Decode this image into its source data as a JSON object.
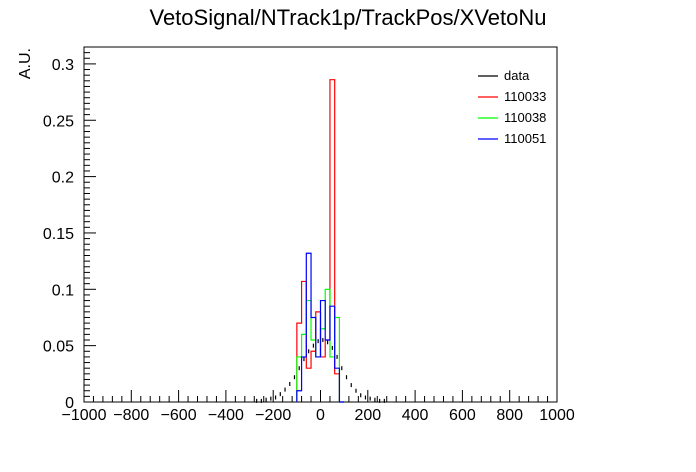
{
  "chart_data": {
    "type": "histogram",
    "title": "VetoSignal/NTrack1p/TrackPos/XVetoNu",
    "xlabel": "",
    "ylabel": "A.U.",
    "xlim": [
      -1000,
      1000
    ],
    "ylim": [
      0,
      0.315
    ],
    "x_ticks": [
      -1000,
      -800,
      -600,
      -400,
      -200,
      0,
      200,
      400,
      600,
      800,
      1000
    ],
    "x_tick_labels": [
      "−1000",
      "−800",
      "−600",
      "−400",
      "−200",
      "0",
      "200",
      "400",
      "600",
      "800",
      "1000"
    ],
    "y_ticks": [
      0,
      0.05,
      0.1,
      0.15,
      0.2,
      0.25,
      0.3
    ],
    "y_tick_labels": [
      "0",
      "0.05",
      "0.1",
      "0.15",
      "0.2",
      "0.25",
      "0.3"
    ],
    "bin_edges_x": [
      -100,
      -80,
      -60,
      -40,
      -20,
      0,
      20,
      40,
      60,
      80,
      100
    ],
    "legend_position": "top-right",
    "series": [
      {
        "name": "data",
        "color": "#000000",
        "style": "points",
        "x": [
          -270,
          -250,
          -230,
          -210,
          -190,
          -170,
          -150,
          -130,
          -110,
          -90,
          -70,
          -50,
          -30,
          -10,
          10,
          30,
          50,
          70,
          90,
          110,
          130,
          150,
          170,
          190,
          210,
          230,
          250,
          270
        ],
        "values": [
          0.001,
          0.001,
          0.002,
          0.003,
          0.004,
          0.007,
          0.011,
          0.016,
          0.022,
          0.03,
          0.038,
          0.045,
          0.05,
          0.054,
          0.055,
          0.053,
          0.048,
          0.04,
          0.03,
          0.022,
          0.015,
          0.01,
          0.006,
          0.004,
          0.003,
          0.002,
          0.001,
          0.001
        ]
      },
      {
        "name": "110033",
        "color": "#ff0000",
        "style": "step",
        "values": [
          0.07,
          0.107,
          0.03,
          0.045,
          0.08,
          0.04,
          0.055,
          0.286,
          0.025,
          0.0
        ]
      },
      {
        "name": "110038",
        "color": "#00ff00",
        "style": "step",
        "values": [
          0.04,
          0.06,
          0.09,
          0.055,
          0.04,
          0.065,
          0.1,
          0.04,
          0.075,
          0.0
        ]
      },
      {
        "name": "110051",
        "color": "#0000ff",
        "style": "step",
        "values": [
          0.01,
          0.04,
          0.132,
          0.075,
          0.04,
          0.09,
          0.055,
          0.085,
          0.03,
          0.0
        ]
      }
    ]
  }
}
